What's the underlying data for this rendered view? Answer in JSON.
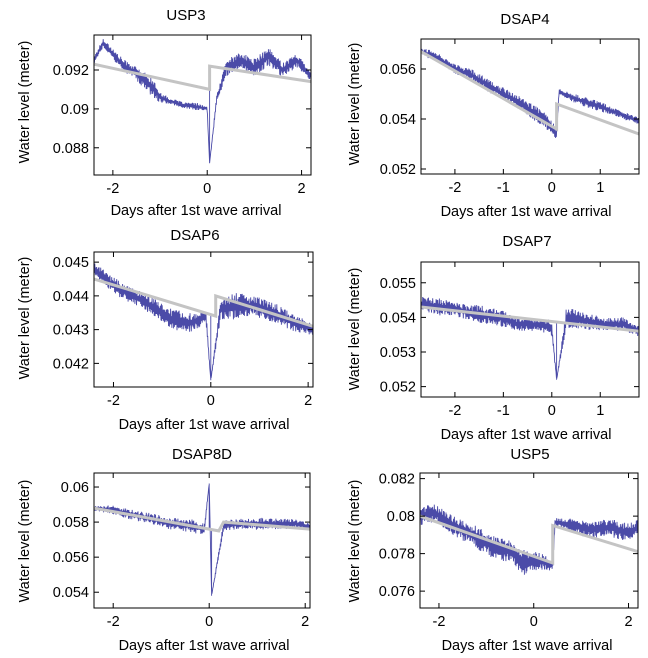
{
  "figure": {
    "background": "#ffffff",
    "raw_color": "#4b4ba8",
    "trend_color": "#c4c4c4",
    "axis_color": "#000000"
  },
  "chart_data": [
    {
      "type": "line",
      "title": "USP3",
      "xlabel": "Days after 1st wave arrival",
      "ylabel": "Water level (meter)",
      "xlim": [
        -2.4,
        2.2
      ],
      "ylim": [
        0.0866,
        0.0938
      ],
      "xticks": [
        -2,
        0,
        2
      ],
      "xtick_labels": [
        "-2",
        "0",
        "2"
      ],
      "yticks": [
        0.088,
        0.09,
        0.092
      ],
      "ytick_labels": [
        "0.088",
        "0.09",
        "0.092"
      ],
      "series": [
        {
          "role": "raw",
          "x": [
            -2.4,
            -2.2,
            -2.0,
            -1.8,
            -1.5,
            -1.2,
            -1.0,
            -0.8,
            -0.5,
            -0.2,
            0.0,
            0.05,
            0.2,
            0.4,
            0.7,
            1.0,
            1.3,
            1.6,
            1.9,
            2.2
          ],
          "y": [
            0.0925,
            0.0934,
            0.0928,
            0.0923,
            0.0918,
            0.0912,
            0.0906,
            0.0904,
            0.0902,
            0.0901,
            0.09,
            0.0872,
            0.0905,
            0.0921,
            0.0925,
            0.0921,
            0.0927,
            0.092,
            0.0925,
            0.0917
          ],
          "spread": [
            0.0004,
            0.0005,
            0.0006,
            0.0006,
            0.0007,
            0.001,
            0.0006,
            0.0003,
            0.0003,
            0.0004,
            0.0002,
            0.0,
            0.0004,
            0.0009,
            0.0008,
            0.001,
            0.0009,
            0.0008,
            0.0007,
            0.0006
          ]
        },
        {
          "role": "trend",
          "x": [
            -2.4,
            0.05,
            0.05,
            2.2
          ],
          "y": [
            0.0923,
            0.091,
            0.0922,
            0.0914
          ]
        }
      ]
    },
    {
      "type": "line",
      "title": "DSAP4",
      "xlabel": "Days after 1st wave arrival",
      "ylabel": "Water level (meter)",
      "xlim": [
        -2.7,
        1.8
      ],
      "ylim": [
        0.0518,
        0.0572
      ],
      "xticks": [
        -2,
        -1,
        0,
        1
      ],
      "xtick_labels": [
        "-2",
        "-1",
        "0",
        "1"
      ],
      "yticks": [
        0.052,
        0.054,
        0.056
      ],
      "ytick_labels": [
        "0.052",
        "0.054",
        "0.056"
      ],
      "series": [
        {
          "role": "raw",
          "x": [
            -2.7,
            -2.4,
            -2.0,
            -1.6,
            -1.2,
            -0.8,
            -0.4,
            -0.1,
            0.1,
            0.15,
            0.5,
            1.0,
            1.4,
            1.8
          ],
          "y": [
            0.0567,
            0.0565,
            0.056,
            0.0557,
            0.0552,
            0.0548,
            0.0543,
            0.0539,
            0.0534,
            0.0551,
            0.0548,
            0.0545,
            0.0542,
            0.0539
          ],
          "spread": [
            0.0003,
            0.0004,
            0.0004,
            0.0005,
            0.0005,
            0.0005,
            0.0006,
            0.0007,
            0.0004,
            0.0002,
            0.0004,
            0.0004,
            0.0003,
            0.0003
          ]
        },
        {
          "role": "trend",
          "x": [
            -2.7,
            0.1,
            0.1,
            1.8
          ],
          "y": [
            0.0567,
            0.0536,
            0.0546,
            0.0534
          ]
        }
      ]
    },
    {
      "type": "line",
      "title": "DSAP6",
      "xlabel": "Days after 1st wave arrival",
      "ylabel": "Water level (meter)",
      "xlim": [
        -2.4,
        2.1
      ],
      "ylim": [
        0.0413,
        0.0453
      ],
      "xticks": [
        -2,
        0,
        2
      ],
      "xtick_labels": [
        "-2",
        "0",
        "2"
      ],
      "yticks": [
        0.042,
        0.043,
        0.044,
        0.045
      ],
      "ytick_labels": [
        "0.042",
        "0.043",
        "0.044",
        "0.045"
      ],
      "series": [
        {
          "role": "raw",
          "x": [
            -2.4,
            -2.0,
            -1.6,
            -1.2,
            -0.8,
            -0.4,
            -0.1,
            0.0,
            0.2,
            0.5,
            0.9,
            1.3,
            1.7,
            2.1
          ],
          "y": [
            0.0448,
            0.0443,
            0.044,
            0.0437,
            0.0433,
            0.0432,
            0.0434,
            0.0415,
            0.0436,
            0.0437,
            0.0437,
            0.0435,
            0.0432,
            0.043
          ],
          "spread": [
            0.0004,
            0.0005,
            0.0005,
            0.0005,
            0.0006,
            0.0006,
            0.0004,
            0.0,
            0.0006,
            0.0008,
            0.0006,
            0.0006,
            0.0005,
            0.0004
          ]
        },
        {
          "role": "trend",
          "x": [
            -2.4,
            0.1,
            0.1,
            2.1
          ],
          "y": [
            0.0445,
            0.0434,
            0.044,
            0.0431
          ]
        }
      ]
    },
    {
      "type": "line",
      "title": "DSAP7",
      "xlabel": "Days after 1st wave arrival",
      "ylabel": "Water level (meter)",
      "xlim": [
        -2.7,
        1.8
      ],
      "ylim": [
        0.0517,
        0.0556
      ],
      "xticks": [
        -2,
        -1,
        0,
        1
      ],
      "xtick_labels": [
        "-2",
        "-1",
        "0",
        "1"
      ],
      "yticks": [
        0.052,
        0.053,
        0.054,
        0.055
      ],
      "ytick_labels": [
        "0.052",
        "0.053",
        "0.054",
        "0.055"
      ],
      "series": [
        {
          "role": "raw",
          "x": [
            -2.7,
            -2.3,
            -1.9,
            -1.5,
            -1.1,
            -0.7,
            -0.3,
            0.0,
            0.1,
            0.3,
            0.7,
            1.1,
            1.5,
            1.8
          ],
          "y": [
            0.0544,
            0.0543,
            0.0542,
            0.0541,
            0.054,
            0.0538,
            0.0538,
            0.0537,
            0.0522,
            0.054,
            0.0539,
            0.0538,
            0.0538,
            0.0536
          ],
          "spread": [
            0.0004,
            0.0005,
            0.0004,
            0.0005,
            0.0005,
            0.0004,
            0.0004,
            0.0005,
            0.0,
            0.0006,
            0.0005,
            0.0004,
            0.0004,
            0.0003
          ]
        },
        {
          "role": "trend",
          "x": [
            -2.7,
            1.8
          ],
          "y": [
            0.0543,
            0.0536
          ]
        }
      ]
    },
    {
      "type": "line",
      "title": "DSAP8D",
      "xlabel": "Days after 1st wave arrival",
      "ylabel": "Water level (meter)",
      "xlim": [
        -2.4,
        2.1
      ],
      "ylim": [
        0.0531,
        0.0608
      ],
      "xticks": [
        -2,
        0,
        2
      ],
      "xtick_labels": [
        "-2",
        "0",
        "2"
      ],
      "yticks": [
        0.054,
        0.056,
        0.058,
        0.06
      ],
      "ytick_labels": [
        "0.054",
        "0.056",
        "0.058",
        "0.06"
      ],
      "series": [
        {
          "role": "raw",
          "x": [
            -2.4,
            -2.0,
            -1.6,
            -1.2,
            -0.8,
            -0.4,
            -0.1,
            0.0,
            0.05,
            0.3,
            0.7,
            1.1,
            1.5,
            1.9,
            2.1
          ],
          "y": [
            0.0588,
            0.0587,
            0.0584,
            0.0582,
            0.0579,
            0.0578,
            0.0576,
            0.0602,
            0.0538,
            0.0578,
            0.0579,
            0.0579,
            0.0579,
            0.0579,
            0.0577
          ],
          "spread": [
            0.0003,
            0.0005,
            0.0006,
            0.0006,
            0.0007,
            0.0008,
            0.0006,
            0.0,
            0.0,
            0.0006,
            0.0006,
            0.0007,
            0.0006,
            0.0005,
            0.0004
          ]
        },
        {
          "role": "trend",
          "x": [
            -2.4,
            0.2,
            0.3,
            2.1
          ],
          "y": [
            0.0588,
            0.0575,
            0.058,
            0.0576
          ]
        }
      ]
    },
    {
      "type": "line",
      "title": "USP5",
      "xlabel": "Days after 1st wave arrival",
      "ylabel": "Water level (meter)",
      "xlim": [
        -2.4,
        2.2
      ],
      "ylim": [
        0.0751,
        0.0823
      ],
      "xticks": [
        -2,
        0,
        2
      ],
      "xtick_labels": [
        "-2",
        "0",
        "2"
      ],
      "yticks": [
        0.076,
        0.078,
        0.08,
        0.082
      ],
      "ytick_labels": [
        "0.076",
        "0.078",
        "0.08",
        "0.082"
      ],
      "series": [
        {
          "role": "raw",
          "x": [
            -2.4,
            -2.1,
            -1.7,
            -1.3,
            -0.9,
            -0.5,
            -0.2,
            0.1,
            0.4,
            0.45,
            0.8,
            1.2,
            1.6,
            2.0,
            2.2
          ],
          "y": [
            0.08,
            0.0802,
            0.0795,
            0.079,
            0.0784,
            0.0781,
            0.0775,
            0.0776,
            0.0774,
            0.0797,
            0.0795,
            0.0793,
            0.0794,
            0.0791,
            0.0794
          ],
          "spread": [
            0.001,
            0.001,
            0.001,
            0.0012,
            0.0012,
            0.0012,
            0.0014,
            0.001,
            0.0006,
            0.0004,
            0.0008,
            0.001,
            0.001,
            0.001,
            0.0008
          ]
        },
        {
          "role": "trend",
          "x": [
            -2.4,
            0.4,
            0.4,
            2.2
          ],
          "y": [
            0.08,
            0.0775,
            0.0795,
            0.0781
          ]
        }
      ]
    }
  ]
}
